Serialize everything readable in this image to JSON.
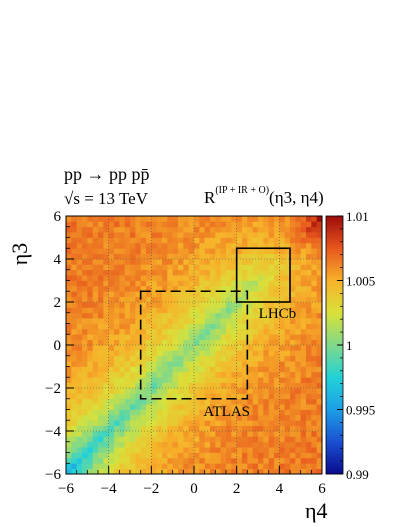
{
  "chart_data": {
    "type": "heatmap",
    "process_label": "pp → pp pp̄",
    "energy_label": "√s = 13 TeV",
    "observable_label": "R(IP + IR + O)(η3, η4)",
    "observable_main": "R",
    "observable_superscript": "(IP + IR + O)",
    "observable_args": "(η3, η4)",
    "xlabel": "η4",
    "ylabel": "η3",
    "xlim": [
      -6,
      6
    ],
    "ylim": [
      -6,
      6
    ],
    "x_ticks": [
      "−6",
      "−4",
      "−2",
      "0",
      "2",
      "4",
      "6"
    ],
    "y_ticks": [
      "−6",
      "−4",
      "−2",
      "0",
      "2",
      "4",
      "6"
    ],
    "colorbar": {
      "range": [
        0.99,
        1.01
      ],
      "tick_labels": [
        "0.99",
        "0.995",
        "1",
        "1.005",
        "1.01"
      ],
      "tick_values": [
        0.99,
        0.995,
        1.0,
        1.005,
        1.01
      ],
      "palette": [
        "#0a0a8c",
        "#1a4fd1",
        "#1d9fe6",
        "#22d2d8",
        "#7fd98a",
        "#d9e13a",
        "#f7b22a",
        "#e8571e",
        "#9e0b0b"
      ]
    },
    "grid": true,
    "bins_per_axis": 48,
    "cell_value_model": "R(η3, η4) ≈ 1 + 0.0062·(1 − e^(−|η3|−|η4| offset)); about 1.000 along the diagonal band η3 ≈ η4, rising to about 1.006–1.007 at large |η3 − η4|, around 0.997 at the lower-left corner (η3, η4 ≈ −6) and 1.009–1.010 at the upper-right corner (η3, η4 ≈ 6)",
    "regions": [
      {
        "name": "ATLAS",
        "label": "ATLAS",
        "x_range": [
          -2.5,
          2.5
        ],
        "y_range": [
          -2.5,
          2.5
        ],
        "style": "dashed"
      },
      {
        "name": "LHCb",
        "label": "LHCb",
        "x_range": [
          2.0,
          4.5
        ],
        "y_range": [
          2.0,
          4.5
        ],
        "style": "solid"
      }
    ]
  }
}
